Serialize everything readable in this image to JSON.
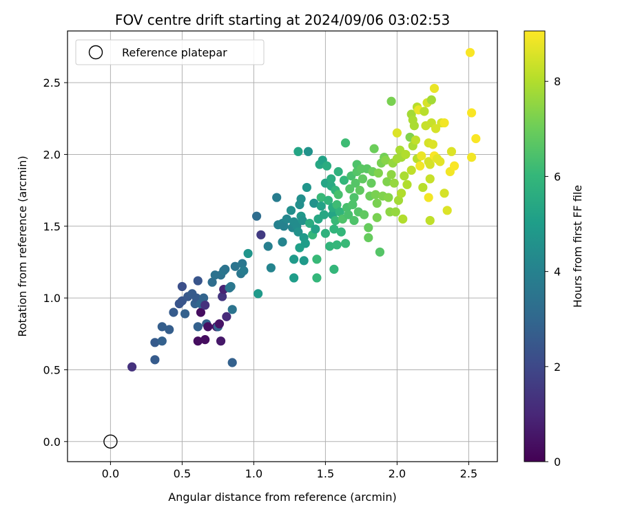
{
  "chart_data": {
    "type": "scatter",
    "title": "FOV centre drift starting at 2024/09/06 03:02:53",
    "xlabel": "Angular distance from reference (arcmin)",
    "ylabel": "Rotation from reference (arcmin)",
    "xlim": [
      -0.3,
      2.7
    ],
    "ylim": [
      -0.14,
      2.86
    ],
    "xticks": [
      0.0,
      0.5,
      1.0,
      1.5,
      2.0,
      2.5
    ],
    "yticks": [
      0.0,
      0.5,
      1.0,
      1.5,
      2.0,
      2.5
    ],
    "xtick_labels": [
      "0.0",
      "0.5",
      "1.0",
      "1.5",
      "2.0",
      "2.5"
    ],
    "ytick_labels": [
      "0.0",
      "0.5",
      "1.0",
      "1.5",
      "2.0",
      "2.5"
    ],
    "grid": true,
    "legend": {
      "placement": "top-left",
      "entries": [
        "Reference platepar"
      ]
    },
    "reference_point": {
      "x": 0.0,
      "y": 0.0
    },
    "colorbar": {
      "label": "Hours from first FF file",
      "range": [
        0,
        9.06
      ],
      "ticks": [
        0,
        2,
        4,
        6,
        8
      ],
      "tick_labels": [
        "0",
        "2",
        "4",
        "6",
        "8"
      ],
      "colormap": "viridis"
    },
    "points": [
      [
        0.15,
        0.52,
        1.3
      ],
      [
        0.31,
        0.57,
        2.6
      ],
      [
        0.31,
        0.69,
        2.6
      ],
      [
        0.36,
        0.7,
        2.8
      ],
      [
        0.36,
        0.8,
        2.7
      ],
      [
        0.41,
        0.78,
        2.7
      ],
      [
        0.44,
        0.9,
        2.6
      ],
      [
        0.48,
        0.96,
        2.4
      ],
      [
        0.5,
        0.98,
        2.4
      ],
      [
        0.5,
        1.08,
        2.2
      ],
      [
        0.52,
        0.89,
        2.8
      ],
      [
        0.54,
        1.01,
        2.5
      ],
      [
        0.57,
        1.03,
        2.6
      ],
      [
        0.59,
        0.96,
        2.8
      ],
      [
        0.6,
        1.0,
        2.6
      ],
      [
        0.61,
        0.8,
        2.8
      ],
      [
        0.61,
        1.12,
        2.4
      ],
      [
        0.61,
        0.7,
        0.3
      ],
      [
        0.63,
        0.9,
        0.3
      ],
      [
        0.63,
        0.96,
        3.0
      ],
      [
        0.65,
        1.0,
        2.9
      ],
      [
        0.66,
        0.71,
        0.3
      ],
      [
        0.66,
        0.95,
        1.3
      ],
      [
        0.67,
        0.82,
        2.8
      ],
      [
        0.68,
        0.8,
        0.4
      ],
      [
        0.71,
        1.11,
        3.2
      ],
      [
        0.73,
        1.16,
        3.4
      ],
      [
        0.74,
        0.8,
        0.5
      ],
      [
        0.75,
        0.8,
        2.9
      ],
      [
        0.76,
        0.82,
        0.5
      ],
      [
        0.77,
        1.16,
        3.4
      ],
      [
        0.77,
        0.7,
        0.6
      ],
      [
        0.78,
        1.01,
        1.4
      ],
      [
        0.79,
        1.19,
        3.6
      ],
      [
        0.79,
        1.06,
        0.9
      ],
      [
        0.8,
        1.2,
        3.5
      ],
      [
        0.81,
        0.87,
        1.1
      ],
      [
        0.83,
        1.07,
        3.6
      ],
      [
        0.84,
        1.08,
        3.6
      ],
      [
        0.85,
        0.55,
        2.8
      ],
      [
        0.85,
        0.92,
        3.5
      ],
      [
        0.87,
        1.22,
        3.5
      ],
      [
        0.91,
        1.17,
        3.6
      ],
      [
        0.92,
        1.24,
        3.6
      ],
      [
        0.93,
        1.19,
        3.8
      ],
      [
        0.96,
        1.31,
        4.7
      ],
      [
        1.02,
        1.57,
        3.2
      ],
      [
        1.03,
        1.03,
        4.9
      ],
      [
        1.05,
        1.44,
        1.6
      ],
      [
        1.1,
        1.36,
        3.9
      ],
      [
        1.12,
        1.21,
        4.1
      ],
      [
        1.16,
        1.7,
        3.8
      ],
      [
        1.17,
        1.51,
        4.0
      ],
      [
        1.2,
        1.52,
        4.1
      ],
      [
        1.2,
        1.39,
        4.1
      ],
      [
        1.21,
        1.5,
        4.0
      ],
      [
        1.23,
        1.55,
        4.2
      ],
      [
        1.26,
        1.61,
        4.5
      ],
      [
        1.27,
        1.49,
        4.2
      ],
      [
        1.28,
        1.53,
        4.4
      ],
      [
        1.28,
        1.27,
        4.9
      ],
      [
        1.28,
        1.14,
        5.0
      ],
      [
        1.3,
        1.5,
        4.4
      ],
      [
        1.31,
        2.02,
        5.3
      ],
      [
        1.31,
        1.46,
        4.6
      ],
      [
        1.32,
        1.35,
        5.1
      ],
      [
        1.32,
        1.65,
        4.5
      ],
      [
        1.33,
        1.69,
        4.5
      ],
      [
        1.33,
        1.57,
        4.8
      ],
      [
        1.34,
        1.54,
        4.6
      ],
      [
        1.35,
        1.42,
        4.9
      ],
      [
        1.35,
        1.26,
        4.9
      ],
      [
        1.36,
        1.38,
        5.0
      ],
      [
        1.37,
        1.77,
        4.7
      ],
      [
        1.38,
        2.02,
        4.6
      ],
      [
        1.39,
        1.52,
        5.6
      ],
      [
        1.41,
        1.44,
        6.0
      ],
      [
        1.42,
        1.66,
        4.6
      ],
      [
        1.43,
        1.48,
        5.2
      ],
      [
        1.44,
        1.27,
        6.1
      ],
      [
        1.44,
        1.14,
        6.0
      ],
      [
        1.45,
        1.55,
        5.4
      ],
      [
        1.46,
        1.93,
        5.4
      ],
      [
        1.47,
        1.7,
        6.1
      ],
      [
        1.47,
        1.64,
        5.2
      ],
      [
        1.48,
        1.96,
        5.2
      ],
      [
        1.49,
        1.58,
        5.4
      ],
      [
        1.5,
        1.45,
        5.8
      ],
      [
        1.5,
        1.8,
        5.3
      ],
      [
        1.51,
        1.92,
        5.6
      ],
      [
        1.52,
        1.68,
        5.9
      ],
      [
        1.53,
        1.36,
        5.9
      ],
      [
        1.54,
        1.78,
        5.5
      ],
      [
        1.54,
        1.83,
        5.6
      ],
      [
        1.55,
        1.58,
        5.3
      ],
      [
        1.55,
        1.63,
        5.6
      ],
      [
        1.56,
        1.2,
        6.0
      ],
      [
        1.56,
        1.48,
        5.9
      ],
      [
        1.57,
        1.54,
        6.1
      ],
      [
        1.57,
        1.75,
        5.9
      ],
      [
        1.58,
        1.37,
        6.0
      ],
      [
        1.58,
        1.65,
        6.2
      ],
      [
        1.59,
        1.88,
        5.8
      ],
      [
        1.59,
        1.72,
        6.4
      ],
      [
        1.6,
        1.6,
        5.9
      ],
      [
        1.61,
        1.46,
        6.0
      ],
      [
        1.62,
        1.55,
        6.5
      ],
      [
        1.63,
        1.82,
        6.0
      ],
      [
        1.64,
        1.38,
        6.1
      ],
      [
        1.64,
        2.08,
        6.2
      ],
      [
        1.65,
        1.63,
        6.4
      ],
      [
        1.66,
        1.58,
        6.4
      ],
      [
        1.67,
        1.76,
        6.6
      ],
      [
        1.68,
        1.85,
        6.4
      ],
      [
        1.69,
        1.65,
        6.5
      ],
      [
        1.7,
        1.7,
        6.5
      ],
      [
        1.7,
        1.54,
        6.5
      ],
      [
        1.71,
        1.8,
        6.6
      ],
      [
        1.72,
        1.88,
        6.6
      ],
      [
        1.72,
        1.93,
        6.5
      ],
      [
        1.73,
        1.6,
        6.6
      ],
      [
        1.74,
        1.75,
        6.8
      ],
      [
        1.75,
        1.9,
        6.7
      ],
      [
        1.76,
        1.83,
        6.8
      ],
      [
        1.77,
        1.58,
        6.8
      ],
      [
        1.79,
        1.9,
        6.7
      ],
      [
        1.8,
        1.49,
        6.9
      ],
      [
        1.8,
        1.42,
        6.9
      ],
      [
        1.81,
        1.71,
        7.0
      ],
      [
        1.82,
        1.8,
        6.9
      ],
      [
        1.83,
        1.88,
        7.0
      ],
      [
        1.84,
        2.04,
        7.0
      ],
      [
        1.85,
        1.72,
        7.2
      ],
      [
        1.86,
        1.66,
        7.2
      ],
      [
        1.86,
        1.56,
        7.2
      ],
      [
        1.87,
        1.87,
        7.3
      ],
      [
        1.88,
        1.32,
        6.6
      ],
      [
        1.89,
        1.94,
        7.2
      ],
      [
        1.9,
        1.71,
        7.3
      ],
      [
        1.91,
        1.98,
        7.1
      ],
      [
        1.92,
        1.96,
        7.4
      ],
      [
        1.93,
        1.81,
        7.3
      ],
      [
        1.94,
        1.7,
        7.4
      ],
      [
        1.95,
        1.6,
        7.5
      ],
      [
        1.96,
        2.37,
        7.2
      ],
      [
        1.96,
        1.86,
        7.5
      ],
      [
        1.97,
        1.94,
        7.6
      ],
      [
        1.98,
        1.8,
        7.6
      ],
      [
        1.99,
        1.6,
        7.6
      ],
      [
        2.0,
        1.97,
        7.8
      ],
      [
        2.0,
        2.15,
        8.6
      ],
      [
        2.01,
        1.68,
        7.8
      ],
      [
        2.02,
        2.03,
        7.9
      ],
      [
        2.03,
        1.73,
        8.0
      ],
      [
        2.03,
        1.98,
        7.8
      ],
      [
        2.04,
        1.55,
        8.0
      ],
      [
        2.05,
        1.85,
        7.9
      ],
      [
        2.06,
        2.0,
        8.0
      ],
      [
        2.07,
        1.79,
        8.0
      ],
      [
        2.09,
        2.12,
        7.3
      ],
      [
        2.1,
        2.28,
        7.8
      ],
      [
        2.1,
        1.89,
        8.2
      ],
      [
        2.11,
        2.06,
        7.9
      ],
      [
        2.11,
        2.24,
        7.9
      ],
      [
        2.12,
        2.2,
        7.9
      ],
      [
        2.13,
        2.1,
        8.2
      ],
      [
        2.14,
        1.97,
        8.1
      ],
      [
        2.14,
        2.33,
        8.1
      ],
      [
        2.15,
        2.31,
        8.8
      ],
      [
        2.16,
        1.92,
        8.9
      ],
      [
        2.17,
        1.99,
        8.8
      ],
      [
        2.18,
        1.77,
        8.1
      ],
      [
        2.19,
        2.3,
        8.1
      ],
      [
        2.2,
        2.2,
        8.3
      ],
      [
        2.21,
        2.36,
        8.5
      ],
      [
        2.22,
        1.7,
        8.9
      ],
      [
        2.22,
        2.08,
        8.5
      ],
      [
        2.22,
        1.95,
        8.5
      ],
      [
        2.23,
        1.93,
        8.5
      ],
      [
        2.23,
        1.54,
        8.2
      ],
      [
        2.23,
        1.83,
        8.3
      ],
      [
        2.24,
        2.38,
        7.8
      ],
      [
        2.24,
        2.22,
        8.3
      ],
      [
        2.25,
        2.07,
        8.6
      ],
      [
        2.26,
        1.99,
        9.0
      ],
      [
        2.26,
        2.46,
        8.8
      ],
      [
        2.27,
        2.18,
        8.5
      ],
      [
        2.28,
        1.97,
        8.7
      ],
      [
        2.3,
        1.95,
        8.7
      ],
      [
        2.31,
        2.22,
        8.5
      ],
      [
        2.33,
        2.22,
        8.9
      ],
      [
        2.33,
        1.73,
        8.5
      ],
      [
        2.35,
        1.61,
        8.6
      ],
      [
        2.37,
        1.88,
        8.9
      ],
      [
        2.38,
        2.02,
        8.6
      ],
      [
        2.4,
        1.92,
        9.0
      ],
      [
        2.51,
        2.71,
        9.0
      ],
      [
        2.52,
        2.29,
        9.0
      ],
      [
        2.52,
        1.98,
        8.9
      ],
      [
        2.55,
        2.11,
        9.0
      ]
    ]
  }
}
